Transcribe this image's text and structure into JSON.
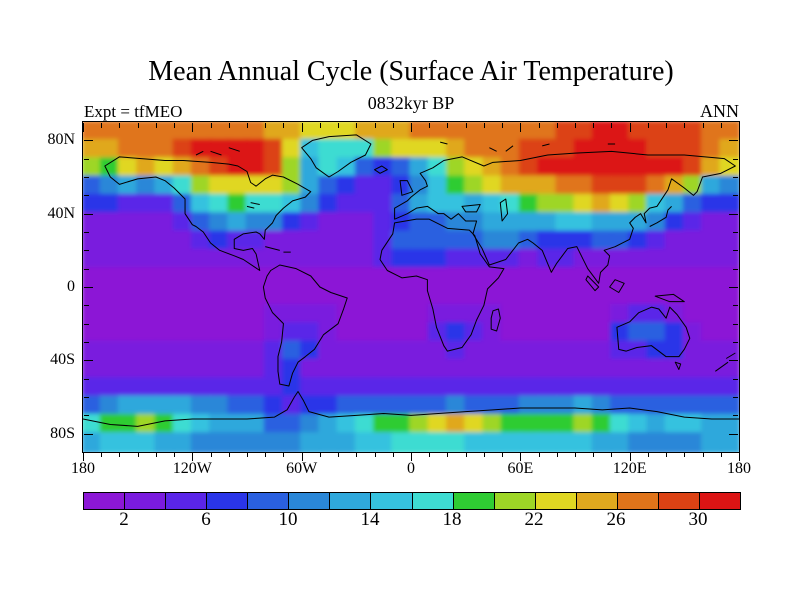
{
  "header": {
    "title": "Mean Annual Cycle (Surface Air Temperature)",
    "subtitle": "0832kyr BP",
    "experiment_label": "Expt = tfMEO",
    "season_label": "ANN"
  },
  "chart_data": {
    "type": "heatmap",
    "subtype": "filled-contour-world-map",
    "title": "Mean Annual Cycle (Surface Air Temperature)",
    "subtitle": "0832kyr BP",
    "experiment": "Expt = tfMEO",
    "season": "ANN",
    "projection": "equirectangular",
    "lon_range": [
      -180,
      180
    ],
    "lat_range": [
      -90,
      90
    ],
    "x_ticks": [
      {
        "label": "180",
        "lon": -180
      },
      {
        "label": "120W",
        "lon": -120
      },
      {
        "label": "60W",
        "lon": -60
      },
      {
        "label": "0",
        "lon": 0
      },
      {
        "label": "60E",
        "lon": 60
      },
      {
        "label": "120E",
        "lon": 120
      },
      {
        "label": "180",
        "lon": 180
      }
    ],
    "y_ticks": [
      {
        "label": "80N",
        "lat": 80
      },
      {
        "label": "40N",
        "lat": 40
      },
      {
        "label": "0",
        "lat": 0
      },
      {
        "label": "40S",
        "lat": -40
      },
      {
        "label": "80S",
        "lat": -80
      }
    ],
    "minor_tick_step_deg": 10,
    "colorbar": {
      "levels": [
        2,
        4,
        6,
        8,
        10,
        12,
        14,
        16,
        18,
        20,
        22,
        24,
        26,
        28,
        30
      ],
      "labels": [
        "2",
        "6",
        "10",
        "14",
        "18",
        "22",
        "26",
        "30"
      ],
      "colors": [
        "#8C17D6",
        "#7A1BDE",
        "#5A25E8",
        "#2A35E8",
        "#2A60E0",
        "#2A87D8",
        "#2FA8DC",
        "#36C2DF",
        "#3EDCD2",
        "#2FCC33",
        "#9ED626",
        "#E0D722",
        "#E0A81E",
        "#E0741A",
        "#DC4214",
        "#DC1414"
      ]
    },
    "grid": {
      "description": "annual cycle amplitude of surface air temperature, approx values read from contour colors",
      "lon_start": -175,
      "lon_step": 10,
      "lat_start": 85,
      "lat_step": -10,
      "values": [
        [
          27,
          27,
          27,
          27,
          27,
          27,
          27,
          27,
          27,
          27,
          25,
          25,
          23,
          23,
          23,
          25,
          25,
          25,
          27,
          27,
          27,
          27,
          27,
          27,
          27,
          27,
          29,
          29,
          31,
          31,
          29,
          29,
          29,
          29,
          27,
          27
        ],
        [
          25,
          25,
          27,
          27,
          27,
          29,
          31,
          31,
          33,
          31,
          29,
          23,
          15,
          17,
          17,
          17,
          21,
          23,
          23,
          23,
          25,
          27,
          27,
          27,
          29,
          29,
          29,
          31,
          31,
          31,
          31,
          29,
          29,
          29,
          27,
          25
        ],
        [
          21,
          19,
          23,
          25,
          23,
          25,
          27,
          29,
          31,
          33,
          29,
          21,
          13,
          17,
          15,
          9,
          7,
          9,
          13,
          17,
          21,
          23,
          25,
          27,
          29,
          31,
          31,
          33,
          33,
          33,
          33,
          31,
          31,
          29,
          25,
          23
        ],
        [
          9,
          11,
          13,
          11,
          13,
          17,
          21,
          23,
          23,
          23,
          23,
          21,
          13,
          9,
          7,
          5,
          5,
          7,
          11,
          15,
          19,
          21,
          23,
          25,
          25,
          25,
          27,
          27,
          29,
          29,
          29,
          27,
          25,
          21,
          13,
          11
        ],
        [
          7,
          7,
          5,
          5,
          5,
          9,
          15,
          17,
          19,
          17,
          17,
          15,
          11,
          7,
          5,
          5,
          5,
          9,
          13,
          15,
          15,
          13,
          15,
          17,
          19,
          21,
          21,
          23,
          25,
          23,
          21,
          15,
          13,
          9,
          7,
          7
        ],
        [
          3,
          3,
          3,
          3,
          3,
          5,
          9,
          11,
          13,
          11,
          11,
          7,
          5,
          3,
          3,
          3,
          5,
          7,
          9,
          9,
          11,
          11,
          13,
          13,
          13,
          13,
          15,
          15,
          13,
          13,
          13,
          11,
          7,
          5,
          3,
          3
        ],
        [
          3,
          3,
          3,
          3,
          3,
          3,
          5,
          7,
          5,
          5,
          3,
          3,
          3,
          3,
          3,
          3,
          5,
          9,
          9,
          9,
          9,
          9,
          11,
          11,
          9,
          7,
          7,
          7,
          9,
          9,
          7,
          5,
          3,
          3,
          3,
          3
        ],
        [
          3,
          3,
          3,
          3,
          3,
          3,
          3,
          3,
          3,
          3,
          3,
          3,
          3,
          3,
          3,
          3,
          5,
          7,
          7,
          7,
          5,
          5,
          5,
          5,
          3,
          5,
          5,
          3,
          3,
          3,
          3,
          3,
          3,
          3,
          3,
          3
        ],
        [
          1,
          1,
          1,
          1,
          1,
          1,
          1,
          1,
          1,
          1,
          1,
          1,
          1,
          1,
          1,
          1,
          1,
          1,
          1,
          1,
          1,
          1,
          1,
          1,
          1,
          1,
          1,
          1,
          1,
          1,
          1,
          1,
          1,
          1,
          1,
          1
        ],
        [
          1,
          1,
          1,
          1,
          1,
          1,
          1,
          1,
          1,
          1,
          1,
          1,
          1,
          1,
          1,
          1,
          1,
          1,
          1,
          1,
          1,
          1,
          1,
          1,
          1,
          1,
          1,
          1,
          1,
          1,
          1,
          1,
          1,
          1,
          1,
          1
        ],
        [
          1,
          1,
          1,
          1,
          1,
          1,
          1,
          1,
          1,
          1,
          3,
          3,
          3,
          3,
          1,
          1,
          1,
          1,
          1,
          3,
          3,
          3,
          3,
          1,
          1,
          1,
          1,
          1,
          1,
          3,
          5,
          5,
          3,
          1,
          1,
          1
        ],
        [
          1,
          1,
          1,
          1,
          1,
          1,
          1,
          1,
          1,
          1,
          3,
          5,
          5,
          3,
          1,
          1,
          1,
          1,
          1,
          5,
          7,
          5,
          3,
          1,
          1,
          1,
          1,
          1,
          1,
          7,
          9,
          9,
          7,
          3,
          1,
          1
        ],
        [
          3,
          3,
          3,
          3,
          3,
          3,
          3,
          3,
          3,
          3,
          5,
          9,
          7,
          3,
          3,
          3,
          3,
          3,
          3,
          3,
          5,
          3,
          3,
          3,
          3,
          3,
          3,
          3,
          3,
          5,
          5,
          7,
          7,
          3,
          3,
          3
        ],
        [
          3,
          3,
          3,
          3,
          3,
          3,
          3,
          3,
          3,
          3,
          5,
          7,
          3,
          3,
          3,
          3,
          3,
          3,
          3,
          3,
          3,
          3,
          3,
          3,
          3,
          3,
          3,
          3,
          3,
          3,
          3,
          3,
          3,
          3,
          3,
          3
        ],
        [
          5,
          5,
          5,
          5,
          5,
          5,
          5,
          5,
          5,
          5,
          5,
          7,
          5,
          5,
          5,
          5,
          5,
          5,
          5,
          5,
          5,
          5,
          5,
          5,
          5,
          5,
          5,
          5,
          5,
          5,
          5,
          5,
          5,
          5,
          5,
          5
        ],
        [
          9,
          11,
          13,
          13,
          13,
          13,
          11,
          11,
          9,
          9,
          7,
          5,
          7,
          7,
          9,
          9,
          9,
          9,
          9,
          9,
          11,
          9,
          9,
          9,
          11,
          11,
          11,
          13,
          11,
          9,
          9,
          9,
          9,
          9,
          9,
          9
        ],
        [
          17,
          19,
          19,
          21,
          19,
          17,
          15,
          13,
          13,
          13,
          9,
          9,
          11,
          13,
          15,
          17,
          19,
          19,
          21,
          23,
          25,
          23,
          21,
          19,
          19,
          19,
          19,
          21,
          19,
          17,
          15,
          13,
          15,
          15,
          13,
          13
        ],
        [
          13,
          15,
          15,
          15,
          13,
          13,
          11,
          11,
          11,
          11,
          11,
          11,
          13,
          13,
          13,
          15,
          15,
          17,
          17,
          17,
          17,
          15,
          15,
          15,
          15,
          15,
          15,
          15,
          13,
          13,
          11,
          11,
          11,
          11,
          13,
          13
        ]
      ]
    },
    "coastlines": [
      "M12,24 L20,19 L32,20 L45,21 L55,21 L70,22 L80,23 L85,24 L90,27 L92,33 L95,35 L100,31 L104,29 L110,30 L118,34 L125,38 L122,41 L115,43 L110,47 L106,51 L104,55 L100,59 L99.5,64 L97,61 L95,60 L88,61 L83,64 L83,69 L88,70 L93,69 L95,72 L97,81 L94,79 L88,75 L83,73 L75,70 L70,66 L66,60 L62,57 L60,56 L56,50 L56,42 L50,36 L45,32 L40,30 L30,31 L20,34 L15,30 Z",
      "M135,30 L128,25 L125,20 L120,14 L126,10 L135,8 L150,7 L158,12 L155,18 L147,22 L140,27 Z",
      "M103,81 L108,78 L117,80 L125,84 L130,90 L136,93 L145,96 L143,102 L140,110 L132,116 L127,124 L122,128 L118,131 L115,137 L113,144 L108,143 L107,136 L107,128 L109,120 L110,110 L104,104 L100,96 L99,90 L101,84 Z",
      "M171,55 L183,53 L190,53 L200,58 L212,59 L215,62 L218,72 L223,79 L231,80 L228,85 L222,91 L220,100 L216,108 L213,116 L208,123 L200,125 L198,122 L194,112 L192,102 L189,92 L189,86 L183,84 L175,85 L167,81 L163,75 L164,70 L170,61 Z",
      "M225,103 L228,102 L229,107 L227,114 L224,113 L224,107 Z",
      "M171,47 L171,53 L178,50 L183,47 L189,46 L195,50 L198,50 L202,53 L206,50 L210,54 L216,54 L214,61 L219,69 L223,78 L232,75 L239,66 L244,64 L247,66 L252,70 L257,82 L260,77 L266,69 L271,68 L274,74 L277,80 L283,88 L284,82 L288,78 L289,73 L286,70 L292,68 L300,64 L302,58 L300,55 L303,52 L306,50 L309,55 L308,50 L311,47 L315,46 L321,37 L323,31 L330,36 L335,40 L337,38 L340,30 L350,28 L358,24 L352,20 L330,18 L310,18 L290,16 L270,17 L255,18 L240,21 L225,22 L220,24 L208,19 L198,21 L192,25 L185,28 L188,32 L189,35 L185,37 L180,41 L178,43 Z",
      "M175,40 L174,32 L178,32 L181,38 Z",
      "M160,26 L164,24 L167,26 L163,28 Z",
      "M311,57 L315,55 L320,52 L321,48 L323,46",
      "M100,68 L108,70 M110,71 L114,71",
      "M292,86 L297,88 L294,93 L289,90 Z",
      "M277,84 L283,90 L281,92 L276,86 Z",
      "M314,95 L324,94 L330,98 L322,98 Z",
      "M293,112 L294,124 L298,125 L304,123 L312,122 L316,125 L320,128 L327,128 L330,124 L333,118 L331,112 L326,105 L322,101 L320,107 L316,102 L312,101 L305,104 L300,109 Z",
      "M325,131 L328,132 L327,135 Z",
      "M347,136 L354,131 M353,129 L358,126",
      "M229,44 L232,42 L233,50 L230,54 Z",
      "M208,46 L218,45 L216,49 L210,49 Z",
      "M92,44 L97,45 M90,46 L94,47",
      "M196,11 L200,12 M223,14 L227,16 M232,16 L236,13 M252,13 L256,12 M288,12 L292,12 M70,16 L76,18 M80,14 L86,16 M62,18 L66,16",
      "M0,162 L15,165 L30,166 L45,163 L60,162 L75,162 L90,162 L105,161 L112,157 L116,150 L118,147 L121,152 L124,158 L135,161 L150,160 L165,159 L180,160 L195,159 L210,158 L225,157 L240,156 L255,156 L270,156 L285,157 L300,156 L315,158 L330,161 L345,162 L360,162"
    ]
  }
}
